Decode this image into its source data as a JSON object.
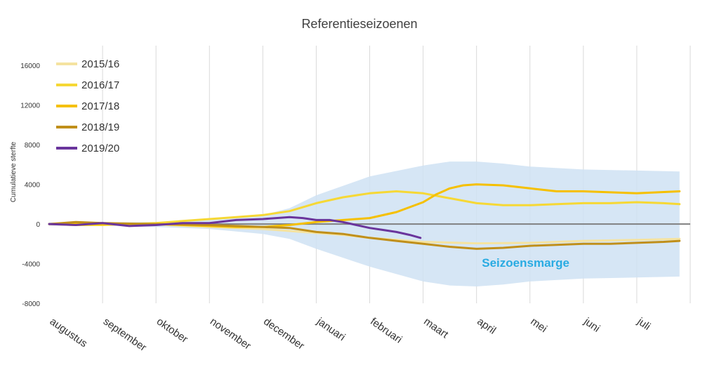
{
  "chart_data": {
    "type": "line",
    "title": "Referentieseizoenen",
    "xlabel": "",
    "ylabel": "Cumulatieve sterfte",
    "ylim": [
      -8000,
      18000
    ],
    "yticks": [
      -8000,
      -4000,
      0,
      4000,
      8000,
      12000,
      16000
    ],
    "xlim": [
      0,
      12
    ],
    "categories": [
      "augustus",
      "september",
      "oktober",
      "november",
      "december",
      "januari",
      "februari",
      "maart",
      "april",
      "mei",
      "juni",
      "juli"
    ],
    "grid": "vertical",
    "legend_position": "top-left",
    "annotation": {
      "text": "Seizoensmarge",
      "color": "#29abe2",
      "x": 8.1,
      "y": -4300
    },
    "band": {
      "name": "Seizoensmarge",
      "color": "#cfe2f3",
      "x": [
        0,
        1,
        2,
        3,
        4,
        4.5,
        5,
        6,
        7,
        7.5,
        8,
        8.5,
        9,
        10,
        11,
        11.8
      ],
      "upper": [
        150,
        150,
        200,
        400,
        900,
        1600,
        2900,
        4800,
        5900,
        6300,
        6300,
        6100,
        5800,
        5500,
        5400,
        5300
      ],
      "lower": [
        -150,
        -150,
        -300,
        -500,
        -1000,
        -1500,
        -2500,
        -4300,
        -5800,
        -6200,
        -6300,
        -6100,
        -5800,
        -5500,
        -5400,
        -5300
      ]
    },
    "zero_line_color": "#808080",
    "series": [
      {
        "name": "2015/16",
        "color": "#f5e3a0",
        "width": 3,
        "x": [
          0,
          1,
          2,
          3,
          4,
          4.5,
          5,
          5.5,
          6,
          7,
          8,
          9,
          10,
          11,
          11.8
        ],
        "y": [
          0,
          50,
          -50,
          -300,
          -500,
          -700,
          -900,
          -1100,
          -1400,
          -1800,
          -1950,
          -1900,
          -1700,
          -1600,
          -1500
        ]
      },
      {
        "name": "2016/17",
        "color": "#f6d835",
        "width": 3,
        "x": [
          0,
          0.5,
          1,
          1.5,
          2,
          2.5,
          3,
          3.5,
          4,
          4.5,
          5,
          5.5,
          6,
          6.5,
          7,
          7.5,
          8,
          8.5,
          9,
          9.5,
          10,
          10.5,
          11,
          11.5,
          11.8
        ],
        "y": [
          0,
          -100,
          -100,
          0,
          100,
          300,
          500,
          700,
          900,
          1300,
          2100,
          2700,
          3100,
          3300,
          3100,
          2600,
          2100,
          1900,
          1900,
          2000,
          2100,
          2100,
          2200,
          2100,
          2000
        ]
      },
      {
        "name": "2017/18",
        "color": "#f5c000",
        "width": 3,
        "x": [
          0,
          1,
          2,
          3,
          3.5,
          4,
          4.5,
          5,
          5.5,
          6,
          6.5,
          7,
          7.25,
          7.5,
          7.75,
          8,
          8.5,
          9,
          9.5,
          10,
          10.5,
          11,
          11.8
        ],
        "y": [
          0,
          0,
          0,
          -200,
          -300,
          -300,
          -100,
          200,
          400,
          600,
          1200,
          2200,
          3000,
          3600,
          3900,
          4000,
          3900,
          3600,
          3300,
          3300,
          3200,
          3100,
          3300
        ]
      },
      {
        "name": "2018/19",
        "color": "#c08f1a",
        "width": 3,
        "x": [
          0,
          0.5,
          1,
          2,
          3,
          3.5,
          4,
          4.5,
          5,
          5.5,
          6,
          6.5,
          7,
          7.5,
          8,
          8.5,
          9,
          9.5,
          10,
          10.5,
          11,
          11.5,
          11.8
        ],
        "y": [
          0,
          200,
          100,
          0,
          -100,
          -200,
          -300,
          -400,
          -800,
          -1000,
          -1400,
          -1700,
          -2000,
          -2300,
          -2500,
          -2400,
          -2200,
          -2100,
          -2000,
          -2000,
          -1900,
          -1800,
          -1700
        ]
      },
      {
        "name": "2019/20",
        "color": "#6a359c",
        "width": 3,
        "x": [
          0,
          0.5,
          1,
          1.5,
          2,
          2.5,
          3,
          3.5,
          4,
          4.25,
          4.5,
          4.75,
          5,
          5.25,
          5.5,
          5.75,
          6,
          6.25,
          6.5,
          6.75,
          6.95
        ],
        "y": [
          0,
          -100,
          100,
          -200,
          -100,
          100,
          100,
          400,
          500,
          600,
          700,
          600,
          400,
          400,
          200,
          -100,
          -400,
          -600,
          -800,
          -1100,
          -1400
        ]
      }
    ]
  }
}
